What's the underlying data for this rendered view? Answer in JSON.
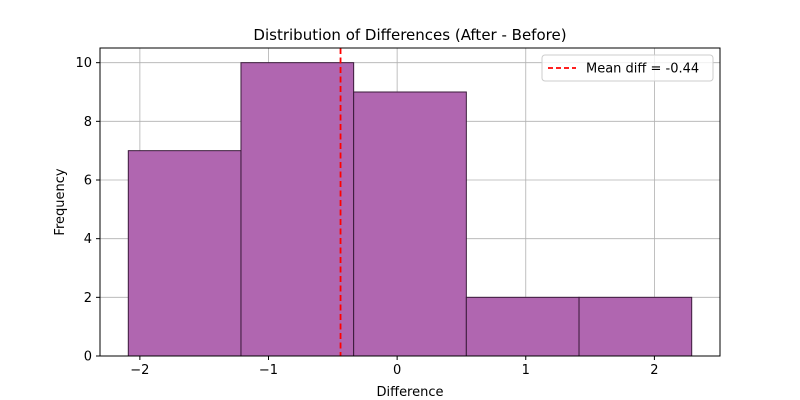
{
  "chart_data": {
    "type": "bar",
    "title": "Distribution of Differences (After - Before)",
    "xlabel": "Difference",
    "ylabel": "Frequency",
    "bins": [
      {
        "start": -2.09,
        "end": -1.214,
        "count": 7
      },
      {
        "start": -1.214,
        "end": -0.338,
        "count": 10
      },
      {
        "start": -0.338,
        "end": 0.538,
        "count": 9
      },
      {
        "start": 0.538,
        "end": 1.414,
        "count": 2
      },
      {
        "start": 1.414,
        "end": 2.29,
        "count": 2
      }
    ],
    "xlim": [
      -2.31,
      2.51
    ],
    "ylim": [
      0,
      10.5
    ],
    "xticks": [
      -2,
      -1,
      0,
      1,
      2
    ],
    "xtick_labels": [
      "−2",
      "−1",
      "0",
      "1",
      "2"
    ],
    "yticks": [
      0,
      2,
      4,
      6,
      8,
      10
    ],
    "ytick_labels": [
      "0",
      "2",
      "4",
      "6",
      "8",
      "10"
    ],
    "mean_line": {
      "value": -0.44,
      "label": "Mean diff = -0.44",
      "color": "#ff0000",
      "style": "dashed"
    },
    "bar_color": "#b066b0",
    "bar_edge_color": "#3a1a3a",
    "grid": true,
    "legend_position": "upper right"
  }
}
